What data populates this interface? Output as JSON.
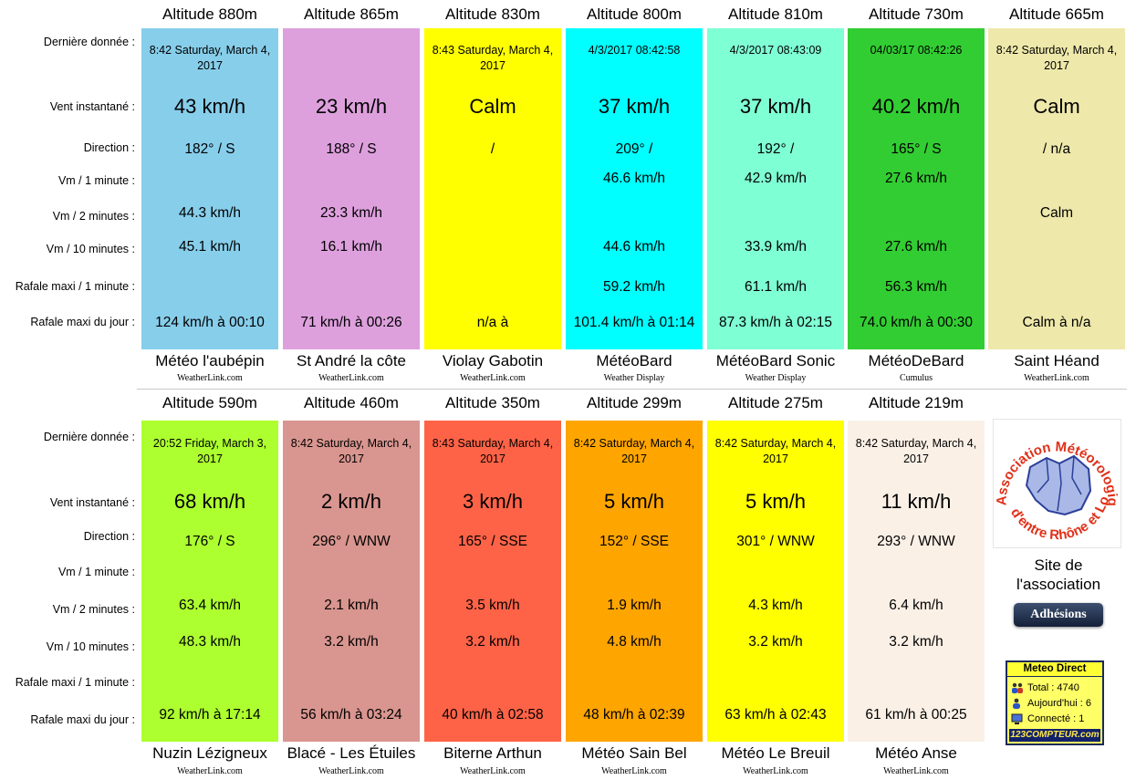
{
  "row_labels": [
    "Dernière donnée :",
    "Vent instantané :",
    "Direction :",
    "Vm / 1 minute :",
    "Vm / 2 minutes :",
    "Vm / 10 minutes :",
    "Rafale maxi / 1 minute :",
    "Rafale maxi du jour :"
  ],
  "stations_top": [
    {
      "altitude": "Altitude 880m",
      "bg": "#87ceeb",
      "time": "8:42 Saturday, March 4, 2017",
      "wind": "43 km/h",
      "dir": "182° / S",
      "vm1": "",
      "vm2": "44.3 km/h",
      "vm10": "45.1 km/h",
      "gust1": "",
      "gustday": "124 km/h à 00:10",
      "name": "Météo l'aubépin",
      "source": "WeatherLink.com"
    },
    {
      "altitude": "Altitude 865m",
      "bg": "#dda0dd",
      "time": "",
      "wind": "23 km/h",
      "dir": "188° / S",
      "vm1": "",
      "vm2": "23.3 km/h",
      "vm10": "16.1 km/h",
      "gust1": "",
      "gustday": "71 km/h à 00:26",
      "name": "St André la côte",
      "source": "WeatherLink.com"
    },
    {
      "altitude": "Altitude 830m",
      "bg": "#ffff00",
      "time": "8:43 Saturday, March 4, 2017",
      "wind": "Calm",
      "dir": "/",
      "vm1": "",
      "vm2": "",
      "vm10": "",
      "gust1": "",
      "gustday": "n/a à",
      "name": "Violay Gabotin",
      "source": "WeatherLink.com"
    },
    {
      "altitude": "Altitude 800m",
      "bg": "#00ffff",
      "time": "4/3/2017 08:42:58",
      "wind": "37 km/h",
      "dir": "209° /",
      "vm1": "46.6 km/h",
      "vm2": "",
      "vm10": "44.6 km/h",
      "gust1": "59.2 km/h",
      "gustday": "101.4 km/h à 01:14",
      "name": "MétéoBard",
      "source": "Weather Display"
    },
    {
      "altitude": "Altitude 810m",
      "bg": "#7fffd4",
      "time": "4/3/2017 08:43:09",
      "wind": "37 km/h",
      "dir": "192° /",
      "vm1": "42.9 km/h",
      "vm2": "",
      "vm10": "33.9 km/h",
      "gust1": "61.1 km/h",
      "gustday": "87.3 km/h à 02:15",
      "name": "MétéoBard Sonic",
      "source": "Weather Display"
    },
    {
      "altitude": "Altitude 730m",
      "bg": "#32cd32",
      "time": "04/03/17 08:42:26",
      "wind": "40.2 km/h",
      "dir": "165° / S",
      "vm1": "27.6 km/h",
      "vm2": "",
      "vm10": "27.6 km/h",
      "gust1": "56.3 km/h",
      "gustday": "74.0 km/h à 00:30",
      "name": "MétéoDeBard",
      "source": "Cumulus"
    },
    {
      "altitude": "Altitude 665m",
      "bg": "#eee8aa",
      "time": "8:42 Saturday, March 4, 2017",
      "wind": "Calm",
      "dir": "/ n/a",
      "vm1": "",
      "vm2": "Calm",
      "vm10": "",
      "gust1": "",
      "gustday": "Calm à n/a",
      "name": "Saint Héand",
      "source": "WeatherLink.com"
    }
  ],
  "stations_bottom": [
    {
      "altitude": "Altitude 590m",
      "bg": "#adff2f",
      "time": "20:52 Friday, March 3, 2017",
      "wind": "68 km/h",
      "dir": "176° / S",
      "vm1": "",
      "vm2": "63.4 km/h",
      "vm10": "48.3 km/h",
      "gust1": "",
      "gustday": "92 km/h à 17:14",
      "name": "Nuzin Lézigneux",
      "source": "WeatherLink.com"
    },
    {
      "altitude": "Altitude 460m",
      "bg": "#d9958f",
      "time": "8:42 Saturday, March 4, 2017",
      "wind": "2 km/h",
      "dir": "296° / WNW",
      "vm1": "",
      "vm2": "2.1 km/h",
      "vm10": "3.2 km/h",
      "gust1": "",
      "gustday": "56 km/h à 03:24",
      "name": "Blacé - Les Étuiles",
      "source": "WeatherLink.com"
    },
    {
      "altitude": "Altitude 350m",
      "bg": "#ff6347",
      "time": "8:43 Saturday, March 4, 2017",
      "wind": "3 km/h",
      "dir": "165° / SSE",
      "vm1": "",
      "vm2": "3.5 km/h",
      "vm10": "3.2 km/h",
      "gust1": "",
      "gustday": "40 km/h à 02:58",
      "name": "Biterne Arthun",
      "source": "WeatherLink.com"
    },
    {
      "altitude": "Altitude 299m",
      "bg": "#ffa500",
      "time": "8:42 Saturday, March 4, 2017",
      "wind": "5 km/h",
      "dir": "152° / SSE",
      "vm1": "",
      "vm2": "1.9 km/h",
      "vm10": "4.8 km/h",
      "gust1": "",
      "gustday": "48 km/h à 02:39",
      "name": "Météo Sain Bel",
      "source": "WeatherLink.com"
    },
    {
      "altitude": "Altitude 275m",
      "bg": "#ffff00",
      "time": "8:42 Saturday, March 4, 2017",
      "wind": "5 km/h",
      "dir": "301° / WNW",
      "vm1": "",
      "vm2": "4.3 km/h",
      "vm10": "3.2 km/h",
      "gust1": "",
      "gustday": "63 km/h à 02:43",
      "name": "Météo Le Breuil",
      "source": "WeatherLink.com"
    },
    {
      "altitude": "Altitude 219m",
      "bg": "#faf0e6",
      "time": "8:42 Saturday, March 4, 2017",
      "wind": "11 km/h",
      "dir": "293° / WNW",
      "vm1": "",
      "vm2": "6.4 km/h",
      "vm10": "3.2 km/h",
      "gust1": "",
      "gustday": "61 km/h à 00:25",
      "name": "Météo Anse",
      "source": "WeatherLink.com"
    }
  ],
  "association": {
    "logo_text": "Association Météorologique d'entre Rhône et Loire",
    "site_line1": "Site de",
    "site_line2": "l'association",
    "button": "Adhésions"
  },
  "counter": {
    "title": "Meteo Direct",
    "total": "Total : 4740",
    "today": "Aujourd'hui : 6",
    "connected": "Connecté : 1",
    "brand": "123COMPTEUR.com"
  }
}
